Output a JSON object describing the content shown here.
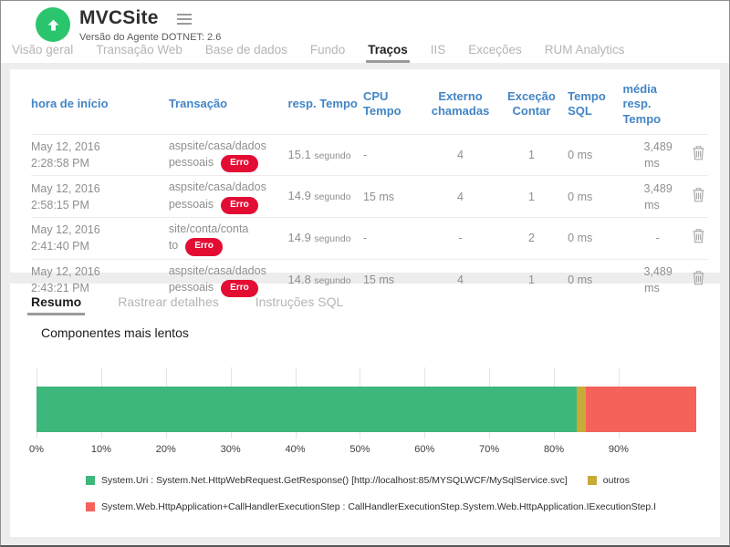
{
  "header": {
    "title": "MVCSite",
    "agent_version": "Versão do Agente DOTNET: 2.6"
  },
  "tabs": {
    "main": [
      {
        "label": "Visão geral",
        "active": false
      },
      {
        "label": "Transação Web",
        "active": false
      },
      {
        "label": "Base de dados",
        "active": false
      },
      {
        "label": "Fundo",
        "active": false
      },
      {
        "label": "Traços",
        "active": true
      },
      {
        "label": "IIS",
        "active": false
      },
      {
        "label": "Exceções",
        "active": false
      },
      {
        "label": "RUM Analytics",
        "active": false
      }
    ],
    "detail": [
      {
        "label": "Resumo",
        "active": true
      },
      {
        "label": "Rastrear detalhes",
        "active": false
      },
      {
        "label": "Instruções SQL",
        "active": false
      }
    ]
  },
  "table": {
    "columns": [
      "hora de início",
      "Transação",
      "resp. Tempo",
      "CPU Tempo",
      "Externo chamadas",
      "Exceção Contar",
      "Tempo SQL",
      "média resp. Tempo"
    ],
    "delete_icon": "trash-icon",
    "rows": [
      {
        "date": "May 12, 2016",
        "time": "2:28:58 PM",
        "transaction_line1": "aspsite/casa/dados",
        "transaction_line2": "pessoais",
        "badge": "Erro",
        "resp_value": "15.1",
        "resp_unit": "segundo",
        "cpu_time": "-",
        "external_calls": "4",
        "exception_count": "1",
        "sql_time": "0 ms",
        "avg_value": "3,489",
        "avg_unit": "ms"
      },
      {
        "date": "May 12, 2016",
        "time": "2:58:15 PM",
        "transaction_line1": "aspsite/casa/dados",
        "transaction_line2": "pessoais",
        "badge": "Erro",
        "resp_value": "14.9",
        "resp_unit": "segundo",
        "cpu_time": "15 ms",
        "external_calls": "4",
        "exception_count": "1",
        "sql_time": "0 ms",
        "avg_value": "3,489",
        "avg_unit": "ms"
      },
      {
        "date": "May 12, 2016",
        "time": "2:41:40 PM",
        "transaction_line1": "site/conta/conta",
        "transaction_line2": "to",
        "badge": "Erro",
        "resp_value": "14.9",
        "resp_unit": "segundo",
        "cpu_time": "-",
        "external_calls": "-",
        "exception_count": "2",
        "sql_time": "0 ms",
        "avg_value": "-",
        "avg_unit": ""
      },
      {
        "date": "May 12, 2016",
        "time": "2:43:21 PM",
        "transaction_line1": "aspsite/casa/dados",
        "transaction_line2": "pessoais",
        "badge": "Erro",
        "resp_value": "14.8",
        "resp_unit": "segundo",
        "cpu_time": "15 ms",
        "external_calls": "4",
        "exception_count": "1",
        "sql_time": "0 ms",
        "avg_value": "3,489",
        "avg_unit": "ms"
      }
    ]
  },
  "chart_data": {
    "type": "bar",
    "orientation": "horizontal",
    "stacked": true,
    "title": "Componentes mais lentos",
    "xlabel": "",
    "ylabel": "",
    "xlim": [
      0,
      102
    ],
    "grid": true,
    "legend_position": "bottom",
    "x_tick_labels": [
      "0%",
      "10%",
      "20%",
      "30%",
      "40%",
      "50%",
      "60%",
      "70%",
      "80%",
      "90%"
    ],
    "series": [
      {
        "name": "System.Uri : System.Net.HttpWebRequest.GetResponse() [http://localhost:85/MYSQLWCF/MySqlService.svc]",
        "value": 83.5,
        "color": "#3db77c"
      },
      {
        "name": "outros",
        "value": 1.5,
        "color": "#c8ab37"
      },
      {
        "name": "System.Web.HttpApplication+CallHandlerExecutionStep : CallHandlerExecutionStep.System.Web.HttpApplication.IExecutionStep.I",
        "value": 17.0,
        "color": "#f4625a"
      }
    ]
  },
  "colors": {
    "logo_green": "#2bc56d",
    "error_badge": "#e30d33",
    "table_header_blue": "#4485c5",
    "bar_green": "#3db77c",
    "bar_yellow": "#c8ab37",
    "bar_red": "#f4625a"
  }
}
